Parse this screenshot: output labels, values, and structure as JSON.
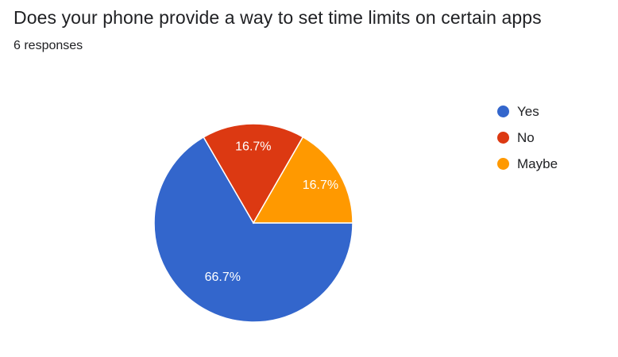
{
  "header": {
    "title": "Does your phone provide a way to set time limits on certain apps",
    "subtitle": "6 responses"
  },
  "chart_data": {
    "type": "pie",
    "title": "Does your phone provide a way to set time limits on certain apps",
    "subtitle": "6 responses",
    "categories": [
      "Yes",
      "No",
      "Maybe"
    ],
    "values": [
      66.7,
      16.7,
      16.7
    ],
    "labels": [
      "66.7%",
      "16.7%",
      "16.7%"
    ],
    "colors": [
      "#3366cc",
      "#dc3912",
      "#ff9900"
    ],
    "legend": "right"
  }
}
